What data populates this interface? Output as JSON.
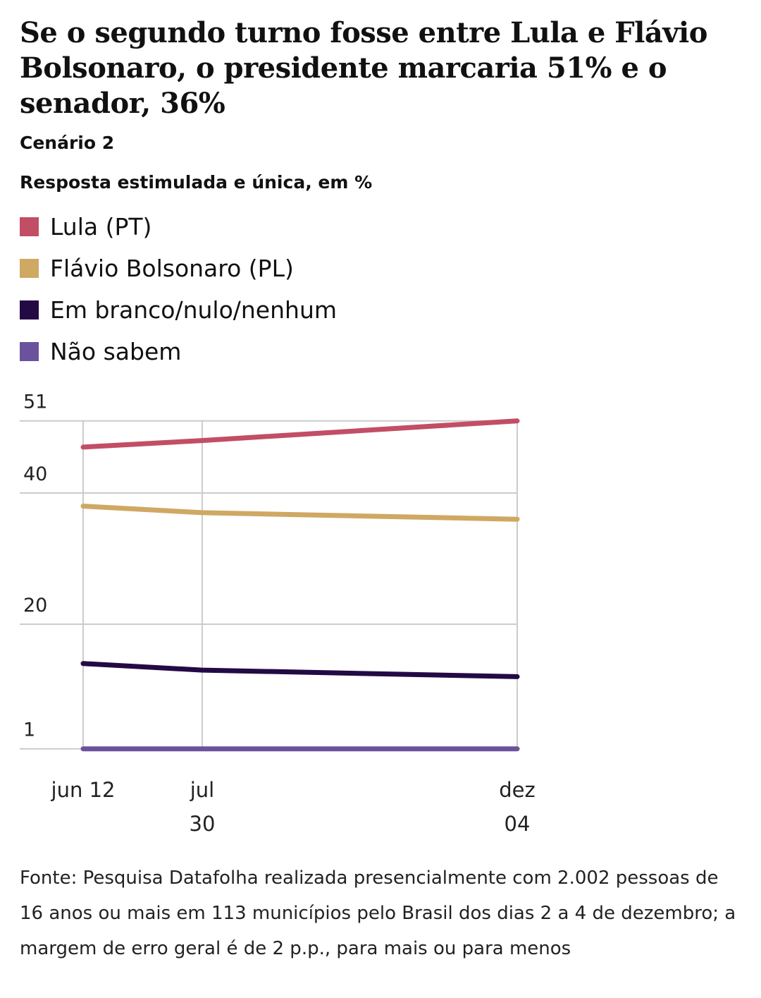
{
  "header": {
    "title": "Se o segundo turno fosse entre Lula e Flávio Bolsonaro, o presidente marcaria 51% e o senador, 36%",
    "scenario": "Cenário 2",
    "subtitle": "Resposta estimulada e única, em %"
  },
  "chart_data": {
    "type": "line",
    "title": "Se o segundo turno fosse entre Lula e Flávio Bolsonaro, o presidente marcaria 51% e o senador, 36%",
    "subtitle": "Resposta estimulada e única, em %",
    "x": [
      "jun 12",
      "jul 30",
      "dez 04"
    ],
    "x_tick_labels": [
      [
        "jun 12"
      ],
      [
        "jul",
        "30"
      ],
      [
        "dez",
        "04"
      ]
    ],
    "x_days_offset_note": "",
    "y_ticks": [
      1,
      20,
      40,
      51
    ],
    "ylim": [
      1,
      51
    ],
    "grid": true,
    "legend_placement": "top-left",
    "series": [
      {
        "name": "Lula (PT)",
        "color": "#c24e66",
        "values": [
          47,
          48,
          51
        ]
      },
      {
        "name": "Flávio Bolsonaro (PL)",
        "color": "#cfa863",
        "values": [
          38,
          37,
          36
        ]
      },
      {
        "name": "Em branco/nulo/nenhum",
        "color": "#230a45",
        "values": [
          14,
          13,
          12
        ]
      },
      {
        "name": "Não sabem",
        "color": "#6a539c",
        "values": [
          1,
          1,
          1
        ]
      }
    ]
  },
  "footer": {
    "source": "Fonte: Pesquisa Datafolha realizada presencialmente com 2.002 pessoas de 16 anos ou mais em 113 municípios pelo Brasil dos dias 2 a 4 de dezembro; a margem de erro geral é de 2 p.p., para mais ou para menos"
  }
}
